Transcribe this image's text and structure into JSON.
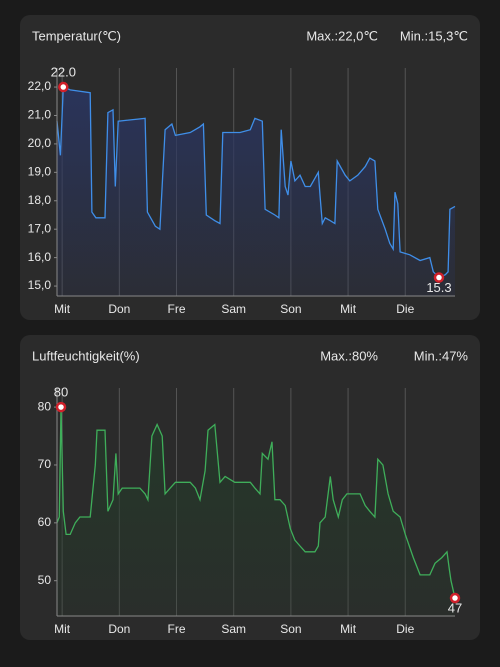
{
  "chart_data": [
    {
      "type": "line",
      "title": "Temperatur(℃)",
      "max_text": "Max.:22,0℃",
      "min_text": "Min.:15,3℃",
      "color": "#3f8ee8",
      "fill": "#2a3560",
      "grid": "x",
      "x": [
        -0.09,
        -0.03,
        0.02,
        0.14,
        0.49,
        0.52,
        0.59,
        0.75,
        0.8,
        0.89,
        0.93,
        0.98,
        1.45,
        1.49,
        1.63,
        1.71,
        1.8,
        1.92,
        1.98,
        2.24,
        2.41,
        2.47,
        2.52,
        2.67,
        2.76,
        2.81,
        3.11,
        3.29,
        3.37,
        3.5,
        3.55,
        3.72,
        3.79,
        3.83,
        3.9,
        3.95,
        4.0,
        4.07,
        4.16,
        4.25,
        4.34,
        4.48,
        4.51,
        4.55,
        4.6,
        4.69,
        4.77,
        4.81,
        4.95,
        5.03,
        5.17,
        5.3,
        5.38,
        5.47,
        5.52,
        5.65,
        5.73,
        5.79,
        5.82,
        5.87,
        5.91,
        6.08,
        6.26,
        6.43,
        6.49,
        6.59,
        6.7,
        6.75,
        6.78,
        6.87
      ],
      "values": [
        20.8,
        19.6,
        22.0,
        21.9,
        21.8,
        17.6,
        17.4,
        17.4,
        21.1,
        21.2,
        18.5,
        20.8,
        20.9,
        17.6,
        17.1,
        17.0,
        20.5,
        20.7,
        20.3,
        20.4,
        20.6,
        20.7,
        17.5,
        17.3,
        17.2,
        20.4,
        20.4,
        20.5,
        20.9,
        20.8,
        17.7,
        17.5,
        17.4,
        20.5,
        18.5,
        18.2,
        19.4,
        18.7,
        18.9,
        18.5,
        18.5,
        19.0,
        18.2,
        17.2,
        17.4,
        17.3,
        17.2,
        19.4,
        18.9,
        18.7,
        18.9,
        19.2,
        19.5,
        19.4,
        17.7,
        17.0,
        16.5,
        16.3,
        18.3,
        17.9,
        16.2,
        16.1,
        15.9,
        16.0,
        15.5,
        15.3,
        15.4,
        15.5,
        17.7,
        17.8
      ],
      "xlim": [
        -0.09,
        6.87
      ],
      "ylim": [
        14.65,
        22.67
      ],
      "xticks": [
        {
          "value": 0,
          "label": "Mit"
        },
        {
          "value": 1,
          "label": "Don"
        },
        {
          "value": 2,
          "label": "Fre"
        },
        {
          "value": 3,
          "label": "Sam"
        },
        {
          "value": 4,
          "label": "Son"
        },
        {
          "value": 5,
          "label": "Mit"
        },
        {
          "value": 6,
          "label": "Die"
        }
      ],
      "yticks": [
        {
          "value": 15,
          "label": "15,0"
        },
        {
          "value": 16,
          "label": "16,0"
        },
        {
          "value": 17,
          "label": "17,0"
        },
        {
          "value": 18,
          "label": "18,0"
        },
        {
          "value": 19,
          "label": "19,0"
        },
        {
          "value": 20,
          "label": "20,0"
        },
        {
          "value": 21,
          "label": "21,0"
        },
        {
          "value": 22,
          "label": "22,0"
        }
      ],
      "annotations": [
        {
          "x": 0.02,
          "y": 22.0,
          "label": "22.0",
          "position": "above"
        },
        {
          "x": 6.59,
          "y": 15.3,
          "label": "15.3",
          "position": "below"
        }
      ]
    },
    {
      "type": "line",
      "title": "Luftfeuchtigkeit(%)",
      "max_text": "Max.:80%",
      "min_text": "Min.:47%",
      "color": "#3fae5a",
      "fill": "#243a2a",
      "grid": "x",
      "x": [
        -0.09,
        -0.05,
        -0.02,
        0.02,
        0.07,
        0.14,
        0.23,
        0.31,
        0.49,
        0.58,
        0.61,
        0.75,
        0.8,
        0.89,
        0.94,
        0.98,
        1.05,
        1.36,
        1.45,
        1.5,
        1.57,
        1.66,
        1.75,
        1.8,
        1.89,
        1.98,
        2.24,
        2.33,
        2.41,
        2.5,
        2.55,
        2.67,
        2.76,
        2.85,
        3.02,
        3.2,
        3.29,
        3.37,
        3.46,
        3.5,
        3.6,
        3.67,
        3.72,
        3.81,
        3.9,
        3.99,
        4.07,
        4.16,
        4.25,
        4.34,
        4.42,
        4.48,
        4.51,
        4.6,
        4.69,
        4.74,
        4.83,
        4.9,
        4.98,
        5.07,
        5.21,
        5.3,
        5.38,
        5.47,
        5.52,
        5.61,
        5.7,
        5.79,
        5.91,
        6.0,
        6.14,
        6.26,
        6.43,
        6.52,
        6.64,
        6.73,
        6.77,
        6.8,
        6.87
      ],
      "values": [
        60,
        61,
        80,
        62,
        58,
        58,
        60,
        61,
        61,
        70,
        76,
        76,
        62,
        64,
        72,
        65,
        66,
        66,
        65,
        64,
        75,
        77,
        75,
        65,
        66,
        67,
        67,
        66,
        64,
        69,
        76,
        77,
        67,
        68,
        67,
        67,
        67,
        66,
        65,
        72,
        71,
        74,
        64,
        64,
        63,
        59,
        57,
        56,
        55,
        55,
        55,
        56,
        60,
        61,
        68,
        64,
        61,
        64,
        65,
        65,
        65,
        63,
        62,
        61,
        71,
        70,
        65,
        62,
        61,
        58,
        54,
        51,
        51,
        53,
        54,
        55,
        52,
        50,
        47
      ],
      "xlim": [
        -0.09,
        6.87
      ],
      "ylim": [
        43.9,
        83.3
      ],
      "xticks": [
        {
          "value": 0,
          "label": "Mit"
        },
        {
          "value": 1,
          "label": "Don"
        },
        {
          "value": 2,
          "label": "Fre"
        },
        {
          "value": 3,
          "label": "Sam"
        },
        {
          "value": 4,
          "label": "Son"
        },
        {
          "value": 5,
          "label": "Mit"
        },
        {
          "value": 6,
          "label": "Die"
        }
      ],
      "yticks": [
        50,
        60,
        70,
        80
      ],
      "annotations": [
        {
          "x": -0.02,
          "y": 80,
          "label": "80",
          "position": "above"
        },
        {
          "x": 6.87,
          "y": 47,
          "label": "47",
          "position": "below"
        }
      ]
    }
  ]
}
